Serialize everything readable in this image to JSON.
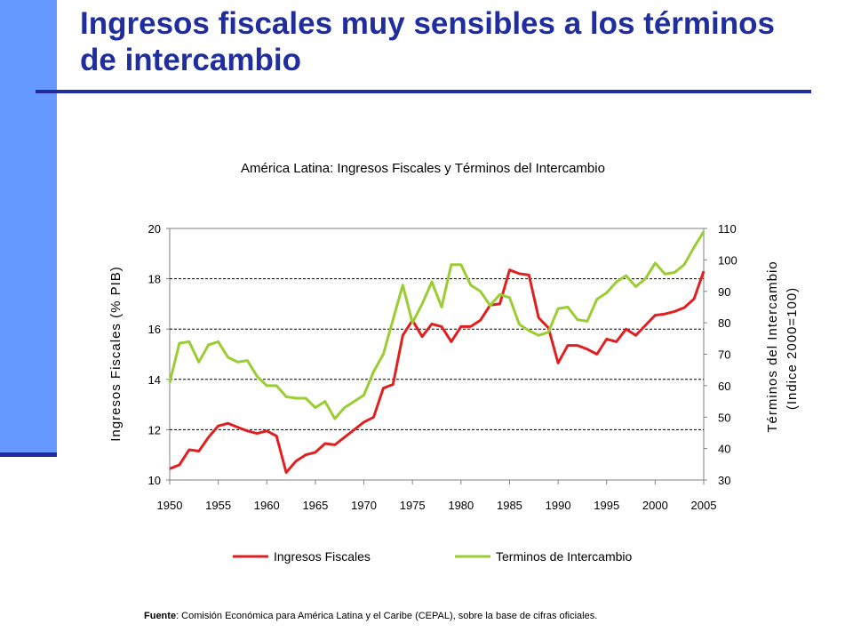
{
  "slide": {
    "title": "Ingresos fiscales muy sensibles a los términos de intercambio",
    "source_label": "Fuente",
    "source_text": ": Comisión Económica para América Latina y el Caribe (CEPAL),  sobre la base de cifras oficiales.",
    "colors": {
      "title": "#1f2d9e",
      "sidebar": "#6699ff",
      "rule": "#1f2d9e"
    }
  },
  "chart_data": {
    "type": "line",
    "title": "América Latina: Ingresos Fiscales y Términos del Intercambio",
    "ylabel": "Ingresos Fiscales (% PIB)",
    "y2label_line1": "Términos del Intercambio",
    "y2label_line2": "(Indice 2000=100)",
    "xlim": [
      1950,
      2005
    ],
    "ylim": [
      10,
      20
    ],
    "y2lim": [
      30,
      110
    ],
    "x_ticks": [
      1950,
      1955,
      1960,
      1965,
      1970,
      1975,
      1980,
      1985,
      1990,
      1995,
      2000,
      2005
    ],
    "y_ticks": [
      10,
      12,
      14,
      16,
      18,
      20
    ],
    "y2_ticks": [
      30,
      40,
      50,
      60,
      70,
      80,
      90,
      100,
      110
    ],
    "grid": "horizontal dashed",
    "legend": "bottom",
    "x": [
      1950,
      1951,
      1952,
      1953,
      1954,
      1955,
      1956,
      1957,
      1958,
      1959,
      1960,
      1961,
      1962,
      1963,
      1964,
      1965,
      1966,
      1967,
      1968,
      1969,
      1970,
      1971,
      1972,
      1973,
      1974,
      1975,
      1976,
      1977,
      1978,
      1979,
      1980,
      1981,
      1982,
      1983,
      1984,
      1985,
      1986,
      1987,
      1988,
      1989,
      1990,
      1991,
      1992,
      1993,
      1994,
      1995,
      1996,
      1997,
      1998,
      1999,
      2000,
      2001,
      2002,
      2003,
      2004,
      2005
    ],
    "series": [
      {
        "name": "Ingresos Fiscales",
        "axis": "left",
        "color": "#e02020",
        "values": [
          10.45,
          10.6,
          11.2,
          11.15,
          11.7,
          12.15,
          12.25,
          12.1,
          11.95,
          11.85,
          11.95,
          11.75,
          10.3,
          10.75,
          11.0,
          11.1,
          11.45,
          11.4,
          11.7,
          12.0,
          12.3,
          12.5,
          13.65,
          13.8,
          15.75,
          16.35,
          15.7,
          16.2,
          16.1,
          15.5,
          16.1,
          16.1,
          16.35,
          16.95,
          17.0,
          18.35,
          18.2,
          18.15,
          16.45,
          16.05,
          14.65,
          15.35,
          15.35,
          15.2,
          15.0,
          15.6,
          15.5,
          16.0,
          15.75,
          16.15,
          16.55,
          16.6,
          16.7,
          16.85,
          17.2,
          18.3
        ]
      },
      {
        "name": "Terminos de Intercambio",
        "axis": "right",
        "color": "#9acd32",
        "values": [
          61,
          73.5,
          74,
          67.5,
          73,
          74,
          69,
          67.5,
          68,
          63,
          60,
          60,
          56.5,
          56,
          56,
          53,
          55,
          49.5,
          53,
          55,
          57,
          64.5,
          70,
          81,
          92,
          80,
          86,
          93,
          85,
          98.5,
          98.5,
          92,
          90,
          85.5,
          89,
          88,
          79.5,
          77.5,
          76,
          77,
          84.5,
          85,
          81,
          80.5,
          87.5,
          89.5,
          93,
          95,
          91.5,
          94,
          99,
          95.5,
          96,
          98.5,
          104,
          109
        ]
      }
    ]
  }
}
